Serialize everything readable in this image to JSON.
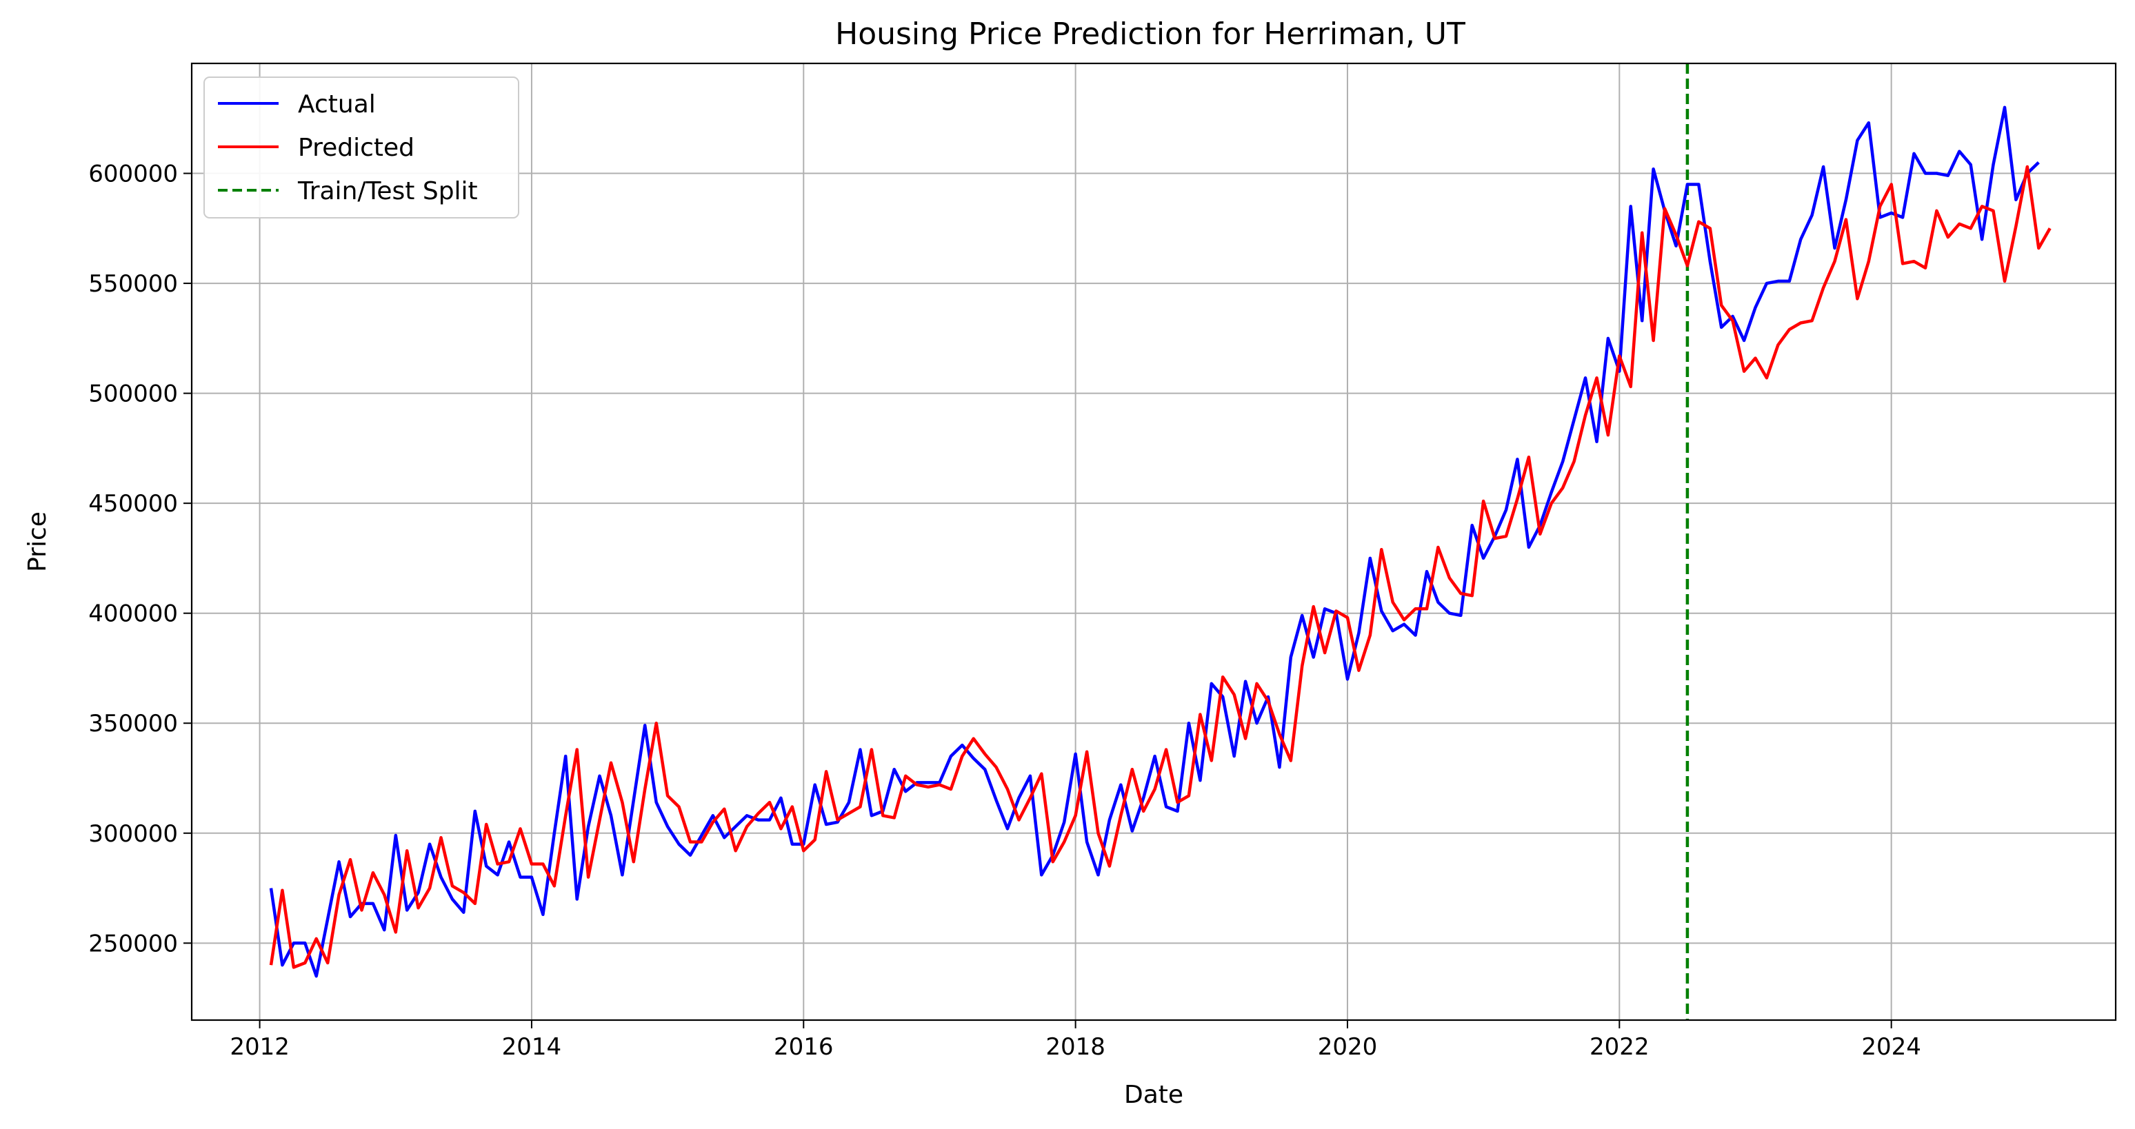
{
  "chart_data": {
    "type": "line",
    "title": "Housing Price Prediction for Herriman, UT",
    "xlabel": "Date",
    "ylabel": "Price",
    "x_range": [
      2011.5,
      2025.65
    ],
    "ylim": [
      215000,
      650000
    ],
    "x_ticks": [
      2012,
      2014,
      2016,
      2018,
      2020,
      2022,
      2024
    ],
    "x_tick_labels": [
      "2012",
      "2014",
      "2016",
      "2018",
      "2020",
      "2022",
      "2024"
    ],
    "y_ticks": [
      250000,
      300000,
      350000,
      400000,
      450000,
      500000,
      550000,
      600000
    ],
    "y_tick_labels": [
      "250000",
      "300000",
      "350000",
      "400000",
      "450000",
      "500000",
      "550000",
      "600000"
    ],
    "grid": true,
    "legend_position": "top-left",
    "split_date": "2022-07",
    "split_label": "Train/Test Split",
    "series": [
      {
        "name": "Actual",
        "color": "#0000ff",
        "start": "2012-02",
        "values": [
          275000,
          240000,
          250000,
          250000,
          235000,
          261000,
          287000,
          262000,
          268000,
          268000,
          256000,
          299000,
          265000,
          273000,
          295000,
          280000,
          270000,
          264000,
          310000,
          285000,
          281000,
          296000,
          280000,
          280000,
          263000,
          300000,
          335000,
          270000,
          303000,
          326000,
          308000,
          281000,
          315000,
          349000,
          314000,
          303000,
          295000,
          290000,
          299000,
          308000,
          298000,
          303000,
          308000,
          306000,
          306000,
          316000,
          295000,
          295000,
          322000,
          304000,
          305000,
          314000,
          338000,
          308000,
          310000,
          329000,
          319000,
          323000,
          323000,
          323000,
          335000,
          340000,
          334000,
          329000,
          315000,
          302000,
          316000,
          326000,
          281000,
          290000,
          305000,
          336000,
          296000,
          281000,
          306000,
          322000,
          301000,
          316000,
          335000,
          312000,
          310000,
          350000,
          324000,
          368000,
          362000,
          335000,
          369000,
          350000,
          362000,
          330000,
          380000,
          399000,
          380000,
          402000,
          400000,
          370000,
          391000,
          425000,
          401000,
          392000,
          395000,
          390000,
          419000,
          405000,
          400000,
          399000,
          440000,
          425000,
          435000,
          447000,
          470000,
          430000,
          440000,
          455000,
          469000,
          488000,
          507000,
          478000,
          525000,
          510000,
          585000,
          533000,
          602000,
          583000,
          567000,
          595000,
          595000,
          560000,
          530000,
          535000,
          524000,
          539000,
          550000,
          551000,
          551000,
          570000,
          581000,
          603000,
          566000,
          588000,
          615000,
          623000,
          580000,
          582000,
          580000,
          609000,
          600000,
          600000,
          599000,
          610000,
          604000,
          570000,
          604000,
          630000,
          588000,
          600000,
          605000
        ]
      },
      {
        "name": "Predicted",
        "color": "#ff0000",
        "start": "2012-02",
        "values": [
          240000,
          274000,
          239000,
          241000,
          252000,
          241000,
          272000,
          288000,
          265000,
          282000,
          272000,
          255000,
          292000,
          266000,
          275000,
          298000,
          276000,
          273000,
          268000,
          304000,
          286000,
          287000,
          302000,
          286000,
          286000,
          276000,
          308000,
          338000,
          280000,
          306000,
          332000,
          314000,
          287000,
          320000,
          350000,
          317000,
          312000,
          296000,
          296000,
          305000,
          311000,
          292000,
          303000,
          309000,
          314000,
          302000,
          312000,
          292000,
          297000,
          328000,
          306000,
          309000,
          312000,
          338000,
          308000,
          307000,
          326000,
          322000,
          321000,
          322000,
          320000,
          335000,
          343000,
          336000,
          330000,
          320000,
          306000,
          316000,
          327000,
          287000,
          296000,
          308000,
          337000,
          300000,
          285000,
          308000,
          329000,
          310000,
          320000,
          338000,
          314000,
          317000,
          354000,
          333000,
          371000,
          363000,
          343000,
          368000,
          360000,
          345000,
          333000,
          376000,
          403000,
          382000,
          401000,
          398000,
          374000,
          390000,
          429000,
          405000,
          397000,
          402000,
          402000,
          430000,
          416000,
          409000,
          408000,
          451000,
          434000,
          435000,
          452000,
          471000,
          436000,
          450000,
          457000,
          469000,
          490000,
          507000,
          481000,
          517000,
          503000,
          573000,
          524000,
          584000,
          572000,
          558000,
          578000,
          575000,
          540000,
          533000,
          510000,
          516000,
          507000,
          522000,
          529000,
          532000,
          533000,
          548000,
          560000,
          579000,
          543000,
          560000,
          585000,
          595000,
          559000,
          560000,
          557000,
          583000,
          571000,
          577000,
          575000,
          585000,
          583000,
          551000,
          576000,
          603000,
          566000,
          575000
        ]
      }
    ]
  }
}
